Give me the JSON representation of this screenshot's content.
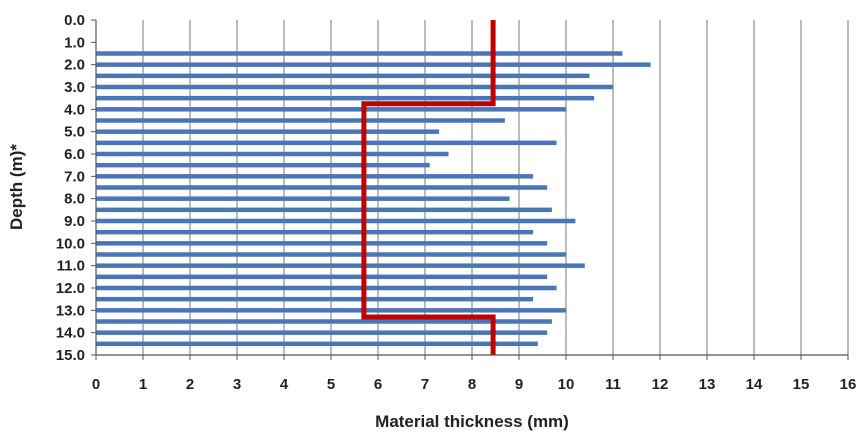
{
  "chart_data": {
    "type": "bar",
    "orientation": "horizontal",
    "title": "",
    "xlabel": "Material thickness (mm)",
    "ylabel": "Depth (m)*",
    "xlim": [
      0,
      16
    ],
    "ylim": [
      0,
      15
    ],
    "x_ticks": [
      "0",
      "1",
      "2",
      "3",
      "4",
      "5",
      "6",
      "7",
      "8",
      "9",
      "10",
      "11",
      "12",
      "13",
      "14",
      "15",
      "16"
    ],
    "y_ticks": [
      "0.0",
      "1.0",
      "2.0",
      "3.0",
      "4.0",
      "5.0",
      "6.0",
      "7.0",
      "8.0",
      "9.0",
      "10.0",
      "11.0",
      "12.0",
      "13.0",
      "14.0",
      "15.0"
    ],
    "grid": "vertical",
    "colors": {
      "bars": "#4a76b8",
      "reference_line": "#c00000",
      "grid": "#777777"
    },
    "bars": [
      {
        "depth": 1.5,
        "value": 11.2
      },
      {
        "depth": 2.0,
        "value": 11.8
      },
      {
        "depth": 2.5,
        "value": 10.5
      },
      {
        "depth": 3.0,
        "value": 11.0
      },
      {
        "depth": 3.5,
        "value": 10.6
      },
      {
        "depth": 4.0,
        "value": 10.0
      },
      {
        "depth": 4.5,
        "value": 8.7
      },
      {
        "depth": 5.0,
        "value": 7.3
      },
      {
        "depth": 5.5,
        "value": 9.8
      },
      {
        "depth": 6.0,
        "value": 7.5
      },
      {
        "depth": 6.5,
        "value": 7.1
      },
      {
        "depth": 7.0,
        "value": 9.3
      },
      {
        "depth": 7.5,
        "value": 9.6
      },
      {
        "depth": 8.0,
        "value": 8.8
      },
      {
        "depth": 8.5,
        "value": 9.7
      },
      {
        "depth": 9.0,
        "value": 10.2
      },
      {
        "depth": 9.5,
        "value": 9.3
      },
      {
        "depth": 10.0,
        "value": 9.6
      },
      {
        "depth": 10.5,
        "value": 10.0
      },
      {
        "depth": 11.0,
        "value": 10.4
      },
      {
        "depth": 11.5,
        "value": 9.6
      },
      {
        "depth": 12.0,
        "value": 9.8
      },
      {
        "depth": 12.5,
        "value": 9.3
      },
      {
        "depth": 13.0,
        "value": 10.0
      },
      {
        "depth": 13.5,
        "value": 9.7
      },
      {
        "depth": 14.0,
        "value": 9.6
      },
      {
        "depth": 14.5,
        "value": 9.4
      }
    ],
    "reference_line": {
      "type": "step",
      "points": [
        [
          8.45,
          0.0
        ],
        [
          8.45,
          3.75
        ],
        [
          5.7,
          3.75
        ],
        [
          5.7,
          13.3
        ],
        [
          8.45,
          13.3
        ],
        [
          8.45,
          15.0
        ]
      ]
    }
  }
}
